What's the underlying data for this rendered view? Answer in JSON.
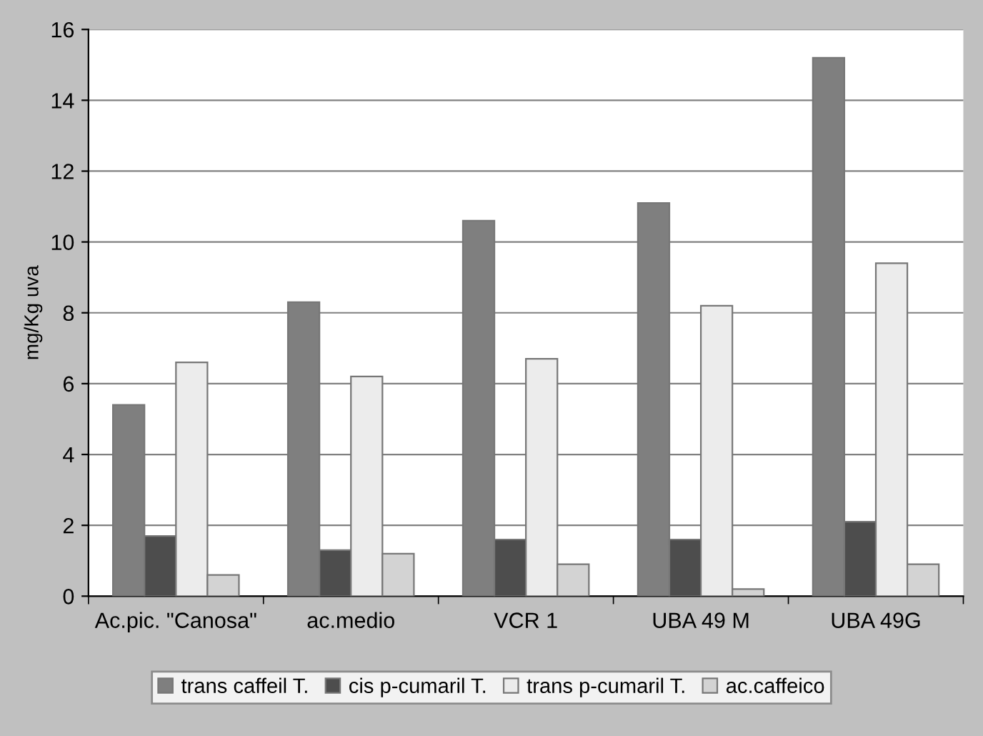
{
  "chart_data": {
    "type": "bar",
    "ylabel": "mg/Kg uva",
    "categories": [
      "Ac.pic. \"Canosa\"",
      "ac.medio",
      "VCR 1",
      "UBA 49 M",
      "UBA 49G"
    ],
    "series": [
      {
        "name": "trans caffeil T.",
        "color": "#7f7f7f",
        "values": [
          5.4,
          8.3,
          10.6,
          11.1,
          15.2
        ]
      },
      {
        "name": "cis p-cumaril T.",
        "color": "#4d4d4d",
        "values": [
          1.7,
          1.3,
          1.6,
          1.6,
          2.1
        ]
      },
      {
        "name": "trans p-cumaril T.",
        "color": "#ececec",
        "values": [
          6.6,
          6.2,
          6.7,
          8.2,
          9.4
        ]
      },
      {
        "name": "ac.caffeico",
        "color": "#d3d3d3",
        "values": [
          0.6,
          1.2,
          0.9,
          0.2,
          0.9
        ]
      }
    ],
    "ylim": [
      0,
      16
    ],
    "yticks": [
      0,
      2,
      4,
      6,
      8,
      10,
      12,
      14,
      16
    ],
    "grid": "y",
    "legend": "bottom"
  }
}
